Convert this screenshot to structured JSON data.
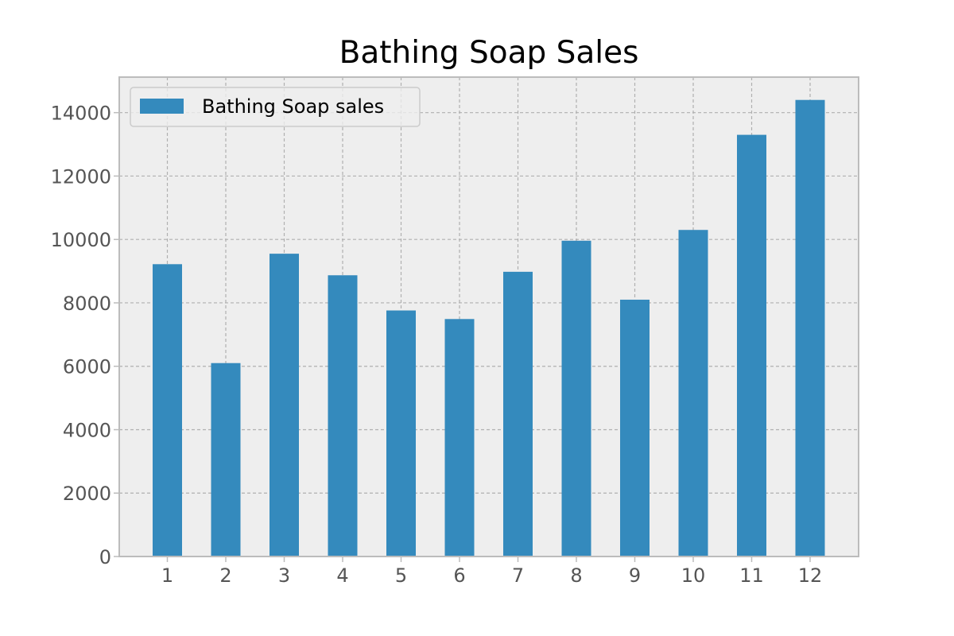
{
  "chart_data": {
    "type": "bar",
    "title": "Bathing Soap Sales",
    "xlabel": "",
    "ylabel": "",
    "categories": [
      "1",
      "2",
      "3",
      "4",
      "5",
      "6",
      "7",
      "8",
      "9",
      "10",
      "11",
      "12"
    ],
    "series": [
      {
        "name": "Bathing Soap sales",
        "color": "#348abd",
        "values": [
          9220,
          6100,
          9550,
          8870,
          7760,
          7490,
          8980,
          9960,
          8100,
          10300,
          13300,
          14400
        ]
      }
    ],
    "ylim": [
      0,
      15120
    ],
    "yticks": [
      0,
      2000,
      4000,
      6000,
      8000,
      10000,
      12000,
      14000
    ],
    "grid": true,
    "legend_position": "top-left",
    "colors": {
      "plot_background": "#eeeeee",
      "grid": "#b0b0b0",
      "axes_edge": "#bcbcbc",
      "tick_label": "#555555"
    }
  }
}
